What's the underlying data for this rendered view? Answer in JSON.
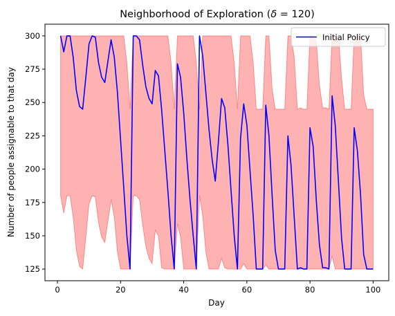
{
  "chart_data": {
    "type": "line",
    "title": "Neighborhood of Exploration (δ = 120)",
    "title_prefix": "Neighborhood of Exploration (",
    "title_symbol": "δ",
    "title_suffix": " = 120)",
    "xlabel": "Day",
    "ylabel": "Number of people assignable to that day",
    "xlim": [
      -3.95,
      104.95
    ],
    "ylim": [
      116.25,
      308.75
    ],
    "xticks": [
      0,
      20,
      40,
      60,
      80,
      100
    ],
    "yticks": [
      125,
      150,
      175,
      200,
      225,
      250,
      275,
      300
    ],
    "legend": {
      "position": "top-right",
      "entries": [
        "Initial Policy"
      ]
    },
    "grid": false,
    "colors": {
      "line": "#0000ff",
      "band_fill": "#ff0000",
      "band_alpha": 0.3
    },
    "series": [
      {
        "name": "Initial Policy",
        "x": [
          1,
          2,
          3,
          4,
          5,
          6,
          7,
          8,
          9,
          10,
          11,
          12,
          13,
          14,
          15,
          16,
          17,
          18,
          19,
          20,
          21,
          22,
          23,
          24,
          25,
          26,
          27,
          28,
          29,
          30,
          31,
          32,
          33,
          34,
          35,
          36,
          37,
          38,
          39,
          40,
          41,
          42,
          43,
          44,
          45,
          46,
          47,
          48,
          49,
          50,
          51,
          52,
          53,
          54,
          55,
          56,
          57,
          58,
          59,
          60,
          61,
          62,
          63,
          64,
          65,
          66,
          67,
          68,
          69,
          70,
          71,
          72,
          73,
          74,
          75,
          76,
          77,
          78,
          79,
          80,
          81,
          82,
          83,
          84,
          85,
          86,
          87,
          88,
          89,
          90,
          91,
          92,
          93,
          94,
          95,
          96,
          97,
          98,
          99,
          100
        ],
        "values": [
          300,
          288,
          300,
          300,
          284,
          259,
          247,
          245,
          269,
          294,
          300,
          299,
          280,
          269,
          265,
          281,
          297,
          284,
          258,
          222,
          186,
          150,
          125,
          300,
          300,
          297,
          278,
          262,
          253,
          249,
          274,
          270,
          245,
          214,
          183,
          150,
          125,
          279,
          269,
          242,
          208,
          177,
          150,
          125,
          300,
          285,
          258,
          230,
          207,
          191,
          221,
          253,
          246,
          218,
          184,
          150,
          125,
          223,
          249,
          233,
          199,
          165,
          125,
          125,
          125,
          248,
          225,
          180,
          139,
          125,
          125,
          125,
          225,
          203,
          164,
          125,
          126,
          125,
          125,
          231,
          217,
          176,
          143,
          126,
          126,
          125,
          255,
          233,
          191,
          148,
          125,
          125,
          125,
          231,
          214,
          181,
          136,
          125,
          125,
          125
        ]
      }
    ],
    "band": {
      "label": "",
      "lower": [
        180,
        167,
        180,
        180,
        164,
        139,
        127,
        125,
        149,
        174,
        180,
        179,
        160,
        149,
        145,
        161,
        177,
        164,
        138,
        125,
        125,
        125,
        125,
        180,
        180,
        177,
        158,
        142,
        133,
        129,
        154,
        150,
        126,
        125,
        125,
        125,
        125,
        159,
        149,
        125,
        125,
        125,
        125,
        125,
        180,
        165,
        138,
        125,
        125,
        125,
        125,
        133,
        126,
        125,
        125,
        125,
        125,
        125,
        129,
        125,
        125,
        125,
        125,
        125,
        125,
        128,
        125,
        125,
        125,
        125,
        125,
        125,
        125,
        125,
        125,
        125,
        125,
        125,
        125,
        125,
        125,
        125,
        125,
        125,
        125,
        125,
        135,
        125,
        125,
        125,
        125,
        125,
        125,
        125,
        125,
        125,
        125,
        125,
        125,
        125
      ],
      "upper": [
        300,
        300,
        300,
        300,
        300,
        300,
        300,
        300,
        300,
        300,
        300,
        300,
        300,
        300,
        300,
        300,
        300,
        300,
        300,
        300,
        300,
        280,
        245,
        300,
        300,
        300,
        300,
        300,
        300,
        300,
        300,
        300,
        300,
        300,
        300,
        280,
        245,
        300,
        300,
        300,
        300,
        300,
        300,
        280,
        245,
        300,
        300,
        300,
        300,
        300,
        300,
        300,
        300,
        300,
        300,
        280,
        245,
        300,
        300,
        300,
        300,
        280,
        245,
        245,
        245,
        300,
        300,
        260,
        245,
        245,
        245,
        245,
        300,
        300,
        284,
        245,
        246,
        245,
        245,
        300,
        300,
        296,
        263,
        246,
        246,
        245,
        300,
        300,
        300,
        268,
        245,
        245,
        245,
        300,
        300,
        300,
        256,
        245,
        245,
        245
      ]
    }
  }
}
